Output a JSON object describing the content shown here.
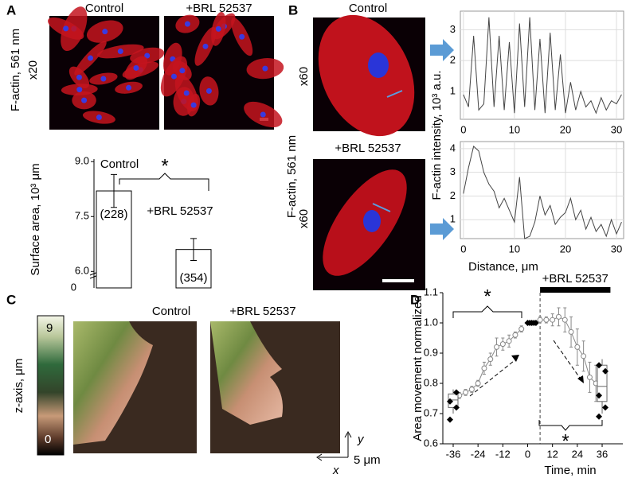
{
  "panel_labels": [
    "A",
    "B",
    "C",
    "D"
  ],
  "panel_a": {
    "image_titles": [
      "Control",
      "+BRL 52537"
    ],
    "ylabel": "F-actin, 561 nm",
    "magnification": "x20"
  },
  "panel_b": {
    "image_titles": [
      "Control",
      "+BRL 52537"
    ],
    "ylabel": "F-actin, 561 nm",
    "magnifications": [
      "x60",
      "x60"
    ]
  },
  "panel_c": {
    "image_titles": [
      "Control",
      "+BRL 52537"
    ],
    "colorbar_label": "z-axis, μm",
    "colorbar_ticks": [
      9,
      0
    ],
    "axis_labels": [
      "y",
      "5 μm",
      "x"
    ]
  },
  "chart_data": [
    {
      "type": "bar",
      "ylabel": "Surface area, 10³ μm",
      "categories": [
        "Control",
        "+BRL 52537"
      ],
      "values": [
        8.2,
        6.6
      ],
      "errors": [
        0.45,
        0.3
      ],
      "n_labels": [
        "(228)",
        "(354)"
      ],
      "color": "#ffffff",
      "ylim": [
        5.55,
        9.07
      ],
      "yticks": [
        {
          "value": 6,
          "label": "6.0"
        },
        7.5,
        {
          "value": 9,
          "label": "9.0"
        }
      ],
      "axis_break_label": "0",
      "annotations": [
        "*"
      ]
    },
    {
      "type": "line",
      "ylabel": "F-actin intensity, 10³ a.u.",
      "grid": true,
      "x": [
        0,
        1,
        2,
        3,
        4,
        5,
        6,
        7,
        8,
        9,
        10,
        11,
        12,
        13,
        14,
        15,
        16,
        17,
        18,
        19,
        20,
        21,
        22,
        23,
        24,
        25,
        26,
        27,
        28,
        29,
        30,
        31
      ],
      "series": [
        {
          "color": "#444444",
          "values": [
            0.9,
            0.5,
            2.8,
            0.4,
            0.6,
            3.4,
            0.5,
            2.8,
            0.4,
            2.6,
            0.3,
            3.2,
            0.5,
            3.4,
            0.4,
            2.7,
            0.3,
            2.9,
            0.4,
            2.2,
            0.3,
            1.3,
            0.4,
            1.0,
            0.5,
            0.7,
            0.3,
            0.8,
            0.4,
            0.7,
            0.6,
            0.9
          ]
        }
      ],
      "xlim": [
        -0.6,
        31.4
      ],
      "ylim": [
        0.1,
        3.6
      ],
      "xticks": [
        0,
        10,
        20,
        30
      ],
      "yticks": [
        1,
        2,
        3
      ]
    },
    {
      "type": "line",
      "xlabel": "Distance, μm",
      "grid": true,
      "x": [
        0,
        1,
        2,
        3,
        4,
        5,
        6,
        7,
        8,
        9,
        10,
        11,
        12,
        13,
        14,
        15,
        16,
        17,
        18,
        19,
        20,
        21,
        22,
        23,
        24,
        25,
        26,
        27,
        28,
        29,
        30,
        31
      ],
      "series": [
        {
          "color": "#444444",
          "values": [
            2.1,
            3.2,
            4.1,
            3.9,
            3.0,
            2.5,
            2.2,
            1.5,
            1.9,
            1.4,
            0.9,
            2.8,
            0.2,
            0.3,
            0.9,
            2.0,
            1.2,
            1.6,
            0.8,
            1.1,
            1.3,
            1.9,
            1.0,
            1.4,
            0.6,
            1.1,
            0.5,
            0.8,
            0.3,
            1.0,
            0.4,
            0.9
          ]
        }
      ],
      "xlim": [
        -0.6,
        31.4
      ],
      "ylim": [
        0.2,
        4.3
      ],
      "xticks": [
        0,
        10,
        20,
        30
      ],
      "yticks": [
        1,
        2,
        3,
        4
      ]
    },
    {
      "type": "line",
      "ylabel": "Area movement normalized",
      "xlabel": "Time, min",
      "grid": false,
      "series": [
        {
          "color": "#888888",
          "marker": "circle",
          "x": [
            -33,
            -30,
            -27,
            -24,
            -21,
            -18,
            -15,
            -12,
            -9,
            -6,
            -3
          ],
          "values": [
            0.76,
            0.77,
            0.78,
            0.8,
            0.85,
            0.88,
            0.92,
            0.93,
            0.94,
            0.96,
            0.98
          ],
          "errors": [
            0.01,
            0.01,
            0.01,
            0.01,
            0.02,
            0.02,
            0.03,
            0.02,
            0.02,
            0.01,
            0.01
          ]
        },
        {
          "color": "#000000",
          "marker": "diamond",
          "x": [
            0,
            1,
            2,
            3,
            4
          ],
          "values": [
            1,
            1,
            1,
            1,
            1
          ]
        },
        {
          "color": "#888888",
          "marker": "circle",
          "x": [
            6,
            9,
            12,
            15,
            18,
            21,
            24,
            27,
            30,
            33
          ],
          "values": [
            1.01,
            1.01,
            1.01,
            1.02,
            1.01,
            0.97,
            0.92,
            0.89,
            0.82,
            0.8
          ],
          "errors": [
            0.01,
            0.01,
            0.02,
            0.03,
            0.04,
            0.05,
            0.06,
            0.05,
            0.05,
            0.06
          ]
        }
      ],
      "boxes": [
        {
          "x": -36,
          "q1": 0.72,
          "median": 0.745,
          "q3": 0.765,
          "whisker_low": 0.7,
          "whisker_high": 0.78,
          "points": [
            0.68,
            0.72,
            0.74,
            0.77
          ]
        },
        {
          "x": 36,
          "q1": 0.74,
          "median": 0.79,
          "q3": 0.86,
          "whisker_low": 0.7,
          "whisker_high": 0.88,
          "points": [
            0.69,
            0.72,
            0.76,
            0.84,
            0.86
          ]
        }
      ],
      "treatment": {
        "label": "+BRL 52537",
        "start": 6,
        "end": 40
      },
      "annotations": [
        "*",
        "*"
      ],
      "xlim": [
        -41,
        46
      ],
      "ylim": [
        0.6,
        1.1
      ],
      "xticks": [
        -36,
        -24,
        -12,
        0,
        12,
        24,
        36
      ],
      "yticks": [
        0.6,
        0.7,
        0.8,
        0.9,
        {
          "value": 1,
          "label": "1.0"
        },
        1.1
      ]
    }
  ]
}
